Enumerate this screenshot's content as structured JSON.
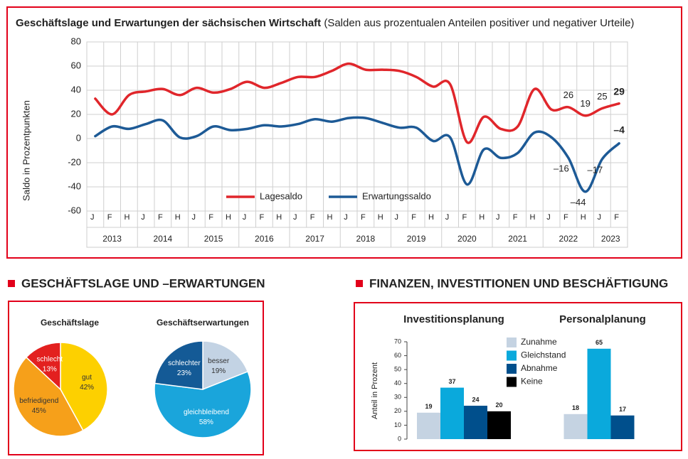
{
  "sections": [
    "GESCHÄFTSLAGE UND –ERWARTUNGEN",
    "FINANZEN, INVESTITIONEN UND BESCHÄFTIGUNG"
  ],
  "chart_data": [
    {
      "type": "line",
      "title": "Geschäftslage und Erwartungen der sächsischen Wirtschaft",
      "subtitle": "(Salden aus prozentualen Anteilen positiver und negativer Urteile)",
      "ylabel": "Saldo in Prozentpunkten",
      "categories": [
        "J",
        "F",
        "H",
        "J",
        "F",
        "H",
        "J",
        "F",
        "H",
        "J",
        "F",
        "H",
        "J",
        "F",
        "H",
        "J",
        "F",
        "H",
        "J",
        "F",
        "H",
        "J",
        "F",
        "H",
        "J",
        "F",
        "H",
        "J",
        "F",
        "H",
        "J",
        "F"
      ],
      "x_groups": [
        {
          "label": "2013",
          "size": 3
        },
        {
          "label": "2014",
          "size": 3
        },
        {
          "label": "2015",
          "size": 3
        },
        {
          "label": "2016",
          "size": 3
        },
        {
          "label": "2017",
          "size": 3
        },
        {
          "label": "2018",
          "size": 3
        },
        {
          "label": "2019",
          "size": 3
        },
        {
          "label": "2020",
          "size": 3
        },
        {
          "label": "2021",
          "size": 3
        },
        {
          "label": "2022",
          "size": 3
        },
        {
          "label": "2023",
          "size": 2
        }
      ],
      "ylim": [
        -60,
        80
      ],
      "yticks": [
        -60,
        -40,
        -20,
        0,
        20,
        40,
        60,
        80
      ],
      "grid": true,
      "series": [
        {
          "name": "Lagesaldo",
          "color": "#e0262b",
          "values": [
            33,
            20,
            36,
            39,
            41,
            36,
            42,
            38,
            41,
            47,
            42,
            46,
            51,
            51,
            56,
            62,
            57,
            57,
            56,
            51,
            43,
            45,
            -3,
            18,
            8,
            10,
            41,
            24,
            26,
            19,
            25,
            29
          ],
          "value_labels": [
            null,
            null,
            null,
            null,
            null,
            null,
            null,
            null,
            null,
            null,
            null,
            null,
            null,
            null,
            null,
            null,
            null,
            null,
            null,
            null,
            null,
            null,
            null,
            null,
            null,
            null,
            null,
            null,
            "26",
            "19",
            "25",
            "29"
          ]
        },
        {
          "name": "Erwartungssaldo",
          "color": "#1d5a96",
          "values": [
            2,
            10,
            8,
            12,
            15,
            1,
            2,
            10,
            7,
            8,
            11,
            10,
            12,
            16,
            14,
            17,
            17,
            13,
            9,
            9,
            -2,
            1,
            -38,
            -9,
            -16,
            -12,
            5,
            1,
            -16,
            -44,
            -17,
            -4
          ],
          "value_labels": [
            null,
            null,
            null,
            null,
            null,
            null,
            null,
            null,
            null,
            null,
            null,
            null,
            null,
            null,
            null,
            null,
            null,
            null,
            null,
            null,
            null,
            null,
            null,
            null,
            null,
            null,
            null,
            null,
            "–16",
            "–44",
            "–17",
            "–4"
          ]
        }
      ]
    },
    {
      "type": "pie",
      "title": "Geschäftslage",
      "categories": [
        "gut",
        "befriedigend",
        "schlecht"
      ],
      "values": [
        42,
        45,
        13
      ],
      "value_labels": [
        "42%",
        "45%",
        "13%"
      ],
      "colors": [
        "#fdd000",
        "#f6a01a",
        "#e3201f"
      ]
    },
    {
      "type": "pie",
      "title": "Geschäftserwartungen",
      "categories": [
        "besser",
        "gleichbleibend",
        "schlechter"
      ],
      "values": [
        19,
        58,
        23
      ],
      "value_labels": [
        "19%",
        "58%",
        "23%"
      ],
      "colors": [
        "#c3d3e4",
        "#1aa5db",
        "#145a96"
      ]
    },
    {
      "type": "bar",
      "ylabel": "Anteil in Prozent",
      "categories": [
        "Investitionsplanung",
        "Personalplanung"
      ],
      "ylim": [
        0,
        70
      ],
      "yticks": [
        0,
        10,
        20,
        30,
        40,
        50,
        60,
        70
      ],
      "series": [
        {
          "name": "Zunahme",
          "color": "#c5d3e2",
          "values": [
            19,
            18
          ]
        },
        {
          "name": "Gleichstand",
          "color": "#0aa9dc",
          "values": [
            37,
            65
          ]
        },
        {
          "name": "Abnahme",
          "color": "#004f8c",
          "values": [
            24,
            17
          ]
        },
        {
          "name": "Keine",
          "color": "#000000",
          "values": [
            20,
            null
          ]
        }
      ]
    }
  ]
}
